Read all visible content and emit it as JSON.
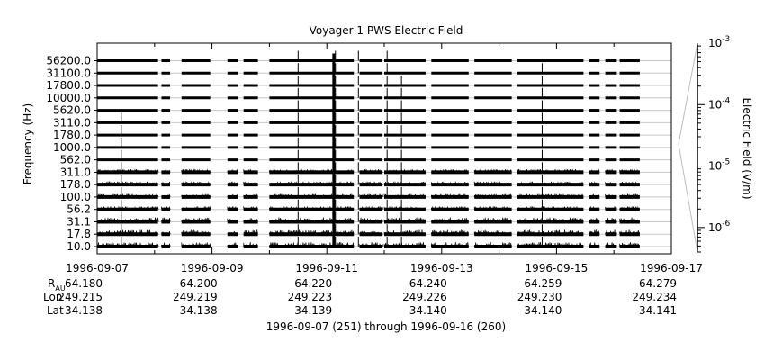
{
  "chart_data": {
    "type": "line",
    "title": "Voyager 1 PWS Electric Field",
    "ylabel": "Frequency (Hz)",
    "colorbar_label": "Electric Field (V/m)",
    "channels": [
      "10.0",
      "17.8",
      "31.1",
      "56.2",
      "100.0",
      "178.0",
      "311.0",
      "562.0",
      "1000.0",
      "1780.0",
      "3110.0",
      "5620.0",
      "10000.0",
      "17800.0",
      "31100.0",
      "56200.0"
    ],
    "x_range": [
      "1996-09-07",
      "1996-09-17"
    ],
    "x_ticks": [
      "1996-09-07",
      "1996-09-09",
      "1996-09-11",
      "1996-09-13",
      "1996-09-15",
      "1996-09-17"
    ],
    "colorbar_ticks": [
      {
        "label": "10",
        "exp": "-3",
        "value": 0.001
      },
      {
        "label": "10",
        "exp": "-4",
        "value": 0.0001
      },
      {
        "label": "10",
        "exp": "-5",
        "value": 1e-05
      },
      {
        "label": "10",
        "exp": "-6",
        "value": 1e-06
      }
    ],
    "colorbar_range": [
      4e-07,
      0.001
    ],
    "colorbar_scale": "log",
    "data_segments_days": [
      [
        0,
        1.06
      ],
      [
        1.12,
        1.27
      ],
      [
        1.47,
        1.97
      ],
      [
        2.27,
        2.45
      ],
      [
        2.55,
        2.8
      ],
      [
        3.0,
        4.47
      ],
      [
        4.57,
        4.97
      ],
      [
        5.0,
        5.72
      ],
      [
        5.82,
        6.47
      ],
      [
        6.57,
        7.22
      ],
      [
        7.32,
        8.47
      ],
      [
        8.57,
        8.75
      ],
      [
        8.85,
        9.05
      ],
      [
        9.1,
        9.45
      ]
    ],
    "spikes": [
      {
        "day": 0.42,
        "channels": [
          0,
          1,
          2,
          3,
          4,
          5,
          6,
          7,
          8,
          9,
          10
        ]
      },
      {
        "day": 3.5,
        "channels": [
          0,
          1,
          2,
          3,
          4,
          5,
          6,
          7,
          8,
          9,
          10,
          11,
          12,
          13,
          14,
          15
        ]
      },
      {
        "day": 4.15,
        "channels": [
          0,
          1,
          2,
          3,
          4,
          5,
          6,
          7,
          8,
          9,
          10,
          11,
          12,
          13,
          14,
          15
        ]
      },
      {
        "day": 4.55,
        "channels": [
          0,
          1,
          2,
          3,
          4,
          5,
          6,
          7,
          8,
          9,
          10,
          11,
          12,
          13,
          14,
          15
        ]
      },
      {
        "day": 5.05,
        "channels": [
          0,
          1,
          2,
          3,
          4,
          5,
          6,
          7,
          8,
          9,
          10,
          11,
          12,
          13,
          14,
          15
        ]
      },
      {
        "day": 5.3,
        "channels": [
          0,
          1,
          2,
          3,
          4,
          5,
          6,
          7,
          8,
          9,
          10,
          11,
          12,
          13
        ]
      },
      {
        "day": 7.75,
        "channels": [
          0,
          1,
          2,
          3,
          4,
          5,
          6,
          7,
          8,
          9,
          10,
          11,
          12,
          13,
          14
        ]
      }
    ],
    "ephemeris": {
      "row_labels": {
        "r": "R",
        "r_sub": "AU",
        "lon": "Lon",
        "lat": "Lat"
      },
      "r": [
        "64.180",
        "64.200",
        "64.220",
        "64.240",
        "64.259",
        "64.279"
      ],
      "lon": [
        "249.215",
        "249.219",
        "249.223",
        "249.226",
        "249.230",
        "249.234"
      ],
      "lat": [
        "34.138",
        "34.138",
        "34.139",
        "34.140",
        "34.140",
        "34.141"
      ]
    },
    "footer": "1996-09-07 (251) through 1996-09-16 (260)"
  }
}
